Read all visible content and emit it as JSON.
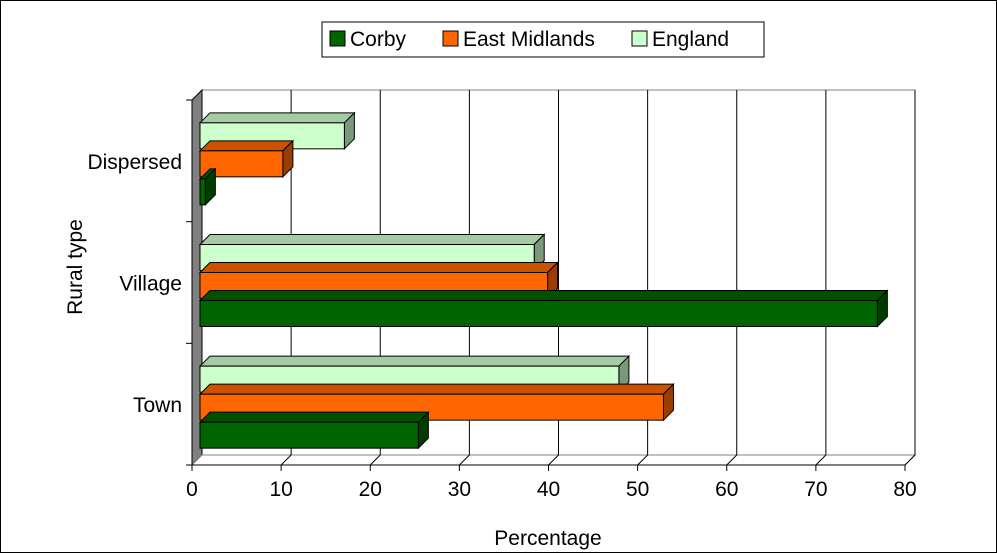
{
  "chart_data": {
    "type": "bar",
    "orientation": "horizontal",
    "three_d": true,
    "categories": [
      "Town",
      "Village",
      "Dispersed"
    ],
    "series": [
      {
        "name": "Corby",
        "values": [
          24.5,
          76,
          0.6
        ],
        "color": "#006400"
      },
      {
        "name": "East Midlands",
        "values": [
          52,
          39,
          9.3
        ],
        "color": "#ff6600"
      },
      {
        "name": "England",
        "values": [
          47,
          37.5,
          16.2
        ],
        "color": "#ccffcc"
      }
    ],
    "xlabel": "Percentage",
    "ylabel": "Rural type",
    "xlim": [
      0,
      80
    ],
    "xticks": [
      0,
      10,
      20,
      30,
      40,
      50,
      60,
      70,
      80
    ],
    "grid": "vertical",
    "legend_position": "top"
  }
}
